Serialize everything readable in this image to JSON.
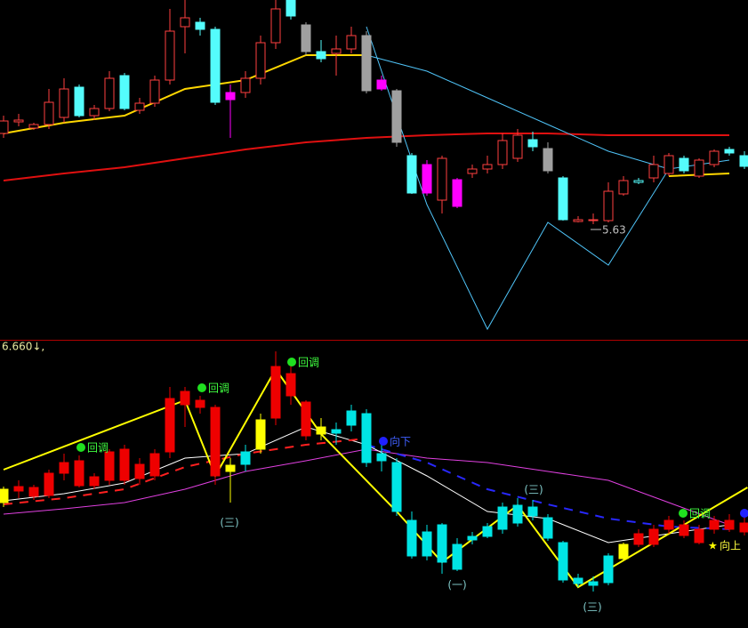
{
  "chart_data": [
    {
      "type": "candlestick",
      "ylim": [
        4.35,
        8.15
      ],
      "hollow_up": true,
      "low_label": 5.63,
      "ohlc": [
        [
          6.65,
          6.85,
          6.6,
          6.79
        ],
        [
          6.78,
          6.87,
          6.73,
          6.8
        ],
        [
          6.71,
          6.77,
          6.69,
          6.75
        ],
        [
          6.75,
          7.15,
          6.7,
          7.0
        ],
        [
          6.83,
          7.27,
          6.77,
          7.15
        ],
        [
          7.17,
          7.2,
          6.83,
          6.85
        ],
        [
          6.85,
          6.97,
          6.8,
          6.93
        ],
        [
          6.93,
          7.35,
          6.9,
          7.27
        ],
        [
          7.3,
          7.33,
          6.91,
          6.93
        ],
        [
          6.91,
          7.05,
          6.87,
          6.99
        ],
        [
          6.99,
          7.3,
          6.95,
          7.25
        ],
        [
          7.25,
          8.05,
          7.2,
          7.8
        ],
        [
          7.85,
          8.15,
          7.55,
          7.95
        ],
        [
          7.9,
          7.95,
          7.75,
          7.82
        ],
        [
          7.82,
          7.85,
          6.97,
          7.0
        ],
        [
          7.11,
          7.2,
          6.6,
          7.03
        ],
        [
          7.11,
          7.35,
          7.05,
          7.27
        ],
        [
          7.27,
          7.75,
          7.2,
          7.67
        ],
        [
          7.67,
          8.15,
          7.6,
          8.05
        ],
        [
          8.15,
          8.15,
          7.93,
          7.97
        ],
        [
          7.87,
          7.9,
          7.53,
          7.57
        ],
        [
          7.57,
          7.7,
          7.45,
          7.49
        ],
        [
          7.55,
          7.75,
          7.3,
          7.6
        ],
        [
          7.6,
          7.85,
          7.55,
          7.75
        ],
        [
          7.75,
          7.8,
          7.1,
          7.13
        ],
        [
          7.25,
          7.3,
          7.13,
          7.15
        ],
        [
          7.13,
          7.15,
          6.5,
          6.55
        ],
        [
          6.4,
          6.43,
          5.97,
          5.98
        ],
        [
          6.3,
          6.35,
          5.95,
          5.98
        ],
        [
          5.9,
          6.4,
          5.75,
          6.37
        ],
        [
          6.13,
          6.15,
          5.81,
          5.83
        ],
        [
          6.2,
          6.3,
          6.15,
          6.25
        ],
        [
          6.25,
          6.4,
          6.2,
          6.3
        ],
        [
          6.3,
          6.65,
          6.25,
          6.57
        ],
        [
          6.37,
          6.7,
          6.33,
          6.63
        ],
        [
          6.58,
          6.67,
          6.45,
          6.5
        ],
        [
          6.48,
          6.55,
          6.2,
          6.23
        ],
        [
          6.15,
          6.17,
          5.67,
          5.68
        ],
        [
          5.66,
          5.72,
          5.65,
          5.68
        ],
        [
          5.67,
          5.75,
          5.63,
          5.68
        ],
        [
          5.67,
          6.1,
          5.65,
          6.0
        ],
        [
          5.97,
          6.17,
          5.95,
          6.12
        ],
        [
          6.1,
          6.15,
          6.08,
          6.12
        ],
        [
          6.15,
          6.4,
          6.1,
          6.3
        ],
        [
          6.2,
          6.43,
          6.17,
          6.4
        ],
        [
          6.37,
          6.4,
          6.2,
          6.23
        ],
        [
          6.17,
          6.37,
          6.15,
          6.35
        ],
        [
          6.3,
          6.47,
          6.27,
          6.45
        ],
        [
          6.47,
          6.5,
          6.4,
          6.43
        ],
        [
          6.4,
          6.45,
          6.25,
          6.28
        ]
      ],
      "candle_colors": [
        "#ff4040",
        "#ff4040",
        "#ff4040",
        "#ff4040",
        "#ff4040",
        "#54fcfc",
        "#ff4040",
        "#ff4040",
        "#54fcfc",
        "#ff4040",
        "#ff4040",
        "#ff4040",
        "#ff4040",
        "#54fcfc",
        "#54fcfc",
        "#ff00ff",
        "#ff4040",
        "#ff4040",
        "#ff4040",
        "#54fcfc",
        "#a0a0a0",
        "#54fcfc",
        "#ff4040",
        "#ff4040",
        "#a0a0a0",
        "#ff00ff",
        "#a0a0a0",
        "#54fcfc",
        "#ff00ff",
        "#ff4040",
        "#ff00ff",
        "#ff4040",
        "#ff4040",
        "#ff4040",
        "#ff4040",
        "#54fcfc",
        "#a0a0a0",
        "#54fcfc",
        "#ff4040",
        "#ff4040",
        "#ff4040",
        "#ff4040",
        "#54fcfc",
        "#ff4040",
        "#ff4040",
        "#54fcfc",
        "#ff4040",
        "#ff4040",
        "#54fcfc",
        "#54fcfc"
      ],
      "lines": [
        {
          "color": "#e01010",
          "width": 2,
          "dash": false,
          "x": [
            0,
            4,
            8,
            12,
            16,
            20,
            24,
            28,
            32,
            36,
            40,
            44,
            48
          ],
          "values": [
            6.12,
            6.2,
            6.27,
            6.37,
            6.47,
            6.55,
            6.6,
            6.63,
            6.65,
            6.65,
            6.63,
            6.63,
            6.63
          ]
        },
        {
          "color": "#ffd700",
          "width": 2,
          "dash": false,
          "x": [
            0,
            4,
            8,
            12,
            16,
            20,
            24,
            28,
            32,
            36,
            40,
            44,
            48
          ],
          "values": [
            6.65,
            6.77,
            6.85,
            7.15,
            7.25,
            7.53,
            7.53,
            null,
            null,
            null,
            null,
            6.17,
            6.2
          ]
        },
        {
          "color": "#4fc3f7",
          "width": 1,
          "dash": false,
          "x": [
            0,
            4,
            8,
            12,
            16,
            20,
            24,
            28,
            32,
            36,
            40,
            44,
            48
          ],
          "values": [
            null,
            null,
            null,
            null,
            null,
            null,
            7.53,
            7.35,
            7.05,
            6.75,
            6.45,
            6.25,
            6.35
          ]
        },
        {
          "color": "#4fc3f7",
          "width": 1,
          "dash": false,
          "x": [
            0,
            4,
            8,
            12,
            16,
            20,
            24,
            28,
            32,
            36,
            40,
            44,
            48
          ],
          "values": [
            null,
            null,
            null,
            null,
            null,
            null,
            7.85,
            5.85,
            4.45,
            5.65,
            5.17,
            6.25,
            null
          ]
        }
      ]
    },
    {
      "type": "candlestick",
      "ylim": [
        3.49,
        6.72
      ],
      "hollow_up": false,
      "header": "6.660↓,",
      "ohlc": [
        [
          4.9,
          5.08,
          4.85,
          5.05
        ],
        [
          5.03,
          5.15,
          4.95,
          5.08
        ],
        [
          4.97,
          5.1,
          4.93,
          5.07
        ],
        [
          4.98,
          5.27,
          4.95,
          5.23
        ],
        [
          5.23,
          5.45,
          5.15,
          5.35
        ],
        [
          5.09,
          5.43,
          5.07,
          5.37
        ],
        [
          5.09,
          5.23,
          5.05,
          5.19
        ],
        [
          5.15,
          5.5,
          5.1,
          5.47
        ],
        [
          5.15,
          5.55,
          5.1,
          5.5
        ],
        [
          5.17,
          5.4,
          5.1,
          5.33
        ],
        [
          5.2,
          5.5,
          5.15,
          5.45
        ],
        [
          5.47,
          6.2,
          5.4,
          6.07
        ],
        [
          6.0,
          6.2,
          5.75,
          6.15
        ],
        [
          5.97,
          6.1,
          5.9,
          6.05
        ],
        [
          5.2,
          6.0,
          5.1,
          5.97
        ],
        [
          5.25,
          5.4,
          4.9,
          5.32
        ],
        [
          5.47,
          5.55,
          5.25,
          5.33
        ],
        [
          5.5,
          5.9,
          5.45,
          5.83
        ],
        [
          5.85,
          6.6,
          5.77,
          6.43
        ],
        [
          6.1,
          6.45,
          6.0,
          6.35
        ],
        [
          5.65,
          6.05,
          5.6,
          6.03
        ],
        [
          5.67,
          5.85,
          5.6,
          5.75
        ],
        [
          5.72,
          5.8,
          5.55,
          5.68
        ],
        [
          5.93,
          6.0,
          5.7,
          5.77
        ],
        [
          5.9,
          5.95,
          5.3,
          5.35
        ],
        [
          5.45,
          5.55,
          5.25,
          5.37
        ],
        [
          5.35,
          5.4,
          4.75,
          4.8
        ],
        [
          4.7,
          4.8,
          4.27,
          4.3
        ],
        [
          4.57,
          4.65,
          4.25,
          4.3
        ],
        [
          4.65,
          4.67,
          4.1,
          4.23
        ],
        [
          4.43,
          4.5,
          4.13,
          4.15
        ],
        [
          4.52,
          4.57,
          4.43,
          4.48
        ],
        [
          4.63,
          4.67,
          4.5,
          4.52
        ],
        [
          4.85,
          4.9,
          4.55,
          4.6
        ],
        [
          4.87,
          4.95,
          4.63,
          4.67
        ],
        [
          4.85,
          4.93,
          4.7,
          4.75
        ],
        [
          4.73,
          4.77,
          4.47,
          4.5
        ],
        [
          4.45,
          4.47,
          4.0,
          4.03
        ],
        [
          4.05,
          4.1,
          3.95,
          3.99
        ],
        [
          4.01,
          4.07,
          3.9,
          3.97
        ],
        [
          4.3,
          4.33,
          3.97,
          4.0
        ],
        [
          4.27,
          4.45,
          4.25,
          4.43
        ],
        [
          4.43,
          4.6,
          4.4,
          4.55
        ],
        [
          4.43,
          4.65,
          4.4,
          4.6
        ],
        [
          4.6,
          4.75,
          4.55,
          4.7
        ],
        [
          4.53,
          4.7,
          4.5,
          4.65
        ],
        [
          4.45,
          4.65,
          4.43,
          4.6
        ],
        [
          4.6,
          4.75,
          4.55,
          4.7
        ],
        [
          4.6,
          4.77,
          4.57,
          4.7
        ],
        [
          4.57,
          4.73,
          4.53,
          4.67
        ]
      ],
      "candle_colors": [
        "#ffff00",
        "#ee0000",
        "#ee0000",
        "#ee0000",
        "#ee0000",
        "#ee0000",
        "#ee0000",
        "#ee0000",
        "#ee0000",
        "#ee0000",
        "#ee0000",
        "#ee0000",
        "#ee0000",
        "#ee0000",
        "#ee0000",
        "#ffff00",
        "#00e5e5",
        "#ffff00",
        "#ee0000",
        "#ee0000",
        "#ee0000",
        "#ffff00",
        "#00e5e5",
        "#00e5e5",
        "#00e5e5",
        "#00e5e5",
        "#00e5e5",
        "#00e5e5",
        "#00e5e5",
        "#00e5e5",
        "#00e5e5",
        "#00e5e5",
        "#00e5e5",
        "#00e5e5",
        "#00e5e5",
        "#00e5e5",
        "#00e5e5",
        "#00e5e5",
        "#00e5e5",
        "#00e5e5",
        "#00e5e5",
        "#ffff00",
        "#ee0000",
        "#ee0000",
        "#ee0000",
        "#ee0000",
        "#ee0000",
        "#ee0000",
        "#ee0000",
        "#ee0000"
      ],
      "lines": [
        {
          "color": "#e040e0",
          "width": 1,
          "dash": false,
          "x": [
            0,
            4,
            8,
            12,
            16,
            20,
            24,
            28,
            32,
            36,
            40,
            44,
            48
          ],
          "values": [
            4.77,
            4.83,
            4.9,
            5.05,
            5.25,
            5.37,
            5.5,
            5.4,
            5.35,
            5.25,
            5.15,
            4.9,
            4.65
          ]
        },
        {
          "color": "#ffffff",
          "width": 1,
          "dash": false,
          "x": [
            0,
            4,
            8,
            12,
            16,
            20,
            24,
            28,
            32,
            36,
            40,
            44,
            48
          ],
          "values": [
            4.92,
            5.0,
            5.12,
            5.4,
            5.45,
            5.75,
            5.55,
            5.2,
            4.8,
            4.72,
            4.45,
            4.55,
            4.65
          ]
        },
        {
          "color": "#ff2020",
          "width": 2,
          "dash": true,
          "x": [
            0,
            4,
            8,
            12,
            16,
            20,
            24,
            28,
            32,
            36,
            40,
            44,
            48
          ],
          "values": [
            4.88,
            4.95,
            5.05,
            5.3,
            5.45,
            5.55,
            5.62,
            null,
            null,
            null,
            null,
            null,
            null
          ]
        },
        {
          "color": "#2828ff",
          "width": 2,
          "dash": true,
          "x": [
            0,
            4,
            8,
            12,
            16,
            20,
            24,
            28,
            32,
            36,
            40,
            44,
            48
          ],
          "values": [
            null,
            null,
            null,
            null,
            null,
            null,
            5.55,
            5.35,
            5.05,
            4.88,
            4.72,
            4.63,
            4.6
          ]
        },
        {
          "color": "#ffff00",
          "width": 2,
          "dash": false,
          "x": [
            0,
            12,
            14,
            18,
            21,
            26,
            29,
            34,
            38,
            49.2
          ],
          "values": [
            5.27,
            6.05,
            5.2,
            6.4,
            5.67,
            4.8,
            4.23,
            4.87,
            3.95,
            5.07
          ]
        }
      ],
      "annotations": [
        "回调",
        "回调",
        "回调",
        "回调",
        "向下",
        "向上",
        "(三)",
        "(一)",
        "(三)",
        "(三)"
      ]
    }
  ]
}
